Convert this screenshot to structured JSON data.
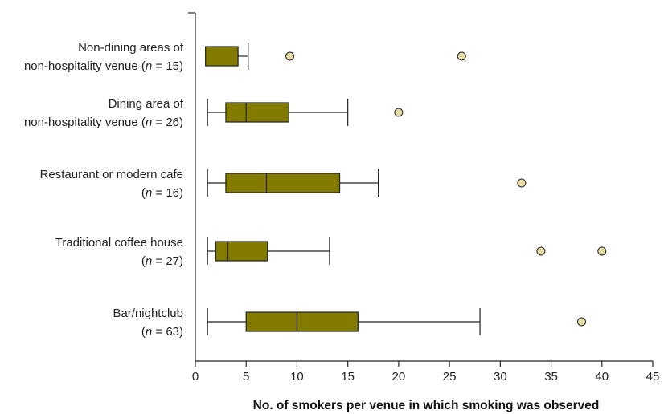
{
  "chart_data": {
    "type": "boxplot",
    "orientation": "horizontal",
    "xlabel": "No. of smokers per venue in which smoking was observed",
    "xlim": [
      0,
      45
    ],
    "xticks": [
      0,
      5,
      10,
      15,
      20,
      25,
      30,
      35,
      40,
      45
    ],
    "grid": false,
    "colors": {
      "box_fill": "#837b00",
      "outlier_fill": "#e8dca6",
      "axis": "#222222"
    },
    "series": [
      {
        "label_line1": "Non-dining areas of",
        "label_prefix": "non-hospitality venue (",
        "n_text": "n",
        "label_suffix": " = 15)",
        "min": 1,
        "q1": 1,
        "median": 1,
        "q3": 4.2,
        "max": 5.2,
        "outliers": [
          9.3,
          26.2
        ]
      },
      {
        "label_line1": "Dining area of",
        "label_prefix": "non-hospitality venue (",
        "n_text": "n",
        "label_suffix": " = 26)",
        "min": 1.2,
        "q1": 3,
        "median": 5,
        "q3": 9.2,
        "max": 15,
        "outliers": [
          20
        ]
      },
      {
        "label_line1": "Restaurant or modern cafe",
        "label_prefix": "(",
        "n_text": "n",
        "label_suffix": " = 16)",
        "min": 1.2,
        "q1": 3,
        "median": 7,
        "q3": 14.2,
        "max": 18,
        "outliers": [
          32.1
        ]
      },
      {
        "label_line1": "Traditional coffee house",
        "label_prefix": "(",
        "n_text": "n",
        "label_suffix": " = 27)",
        "min": 1.2,
        "q1": 2,
        "median": 3.2,
        "q3": 7.1,
        "max": 13.2,
        "outliers": [
          34,
          40
        ]
      },
      {
        "label_line1": "Bar/nightclub",
        "label_prefix": "(",
        "n_text": "n",
        "label_suffix": " = 63)",
        "min": 1.2,
        "q1": 5,
        "median": 10,
        "q3": 16,
        "max": 28,
        "outliers": [
          38
        ]
      }
    ]
  }
}
